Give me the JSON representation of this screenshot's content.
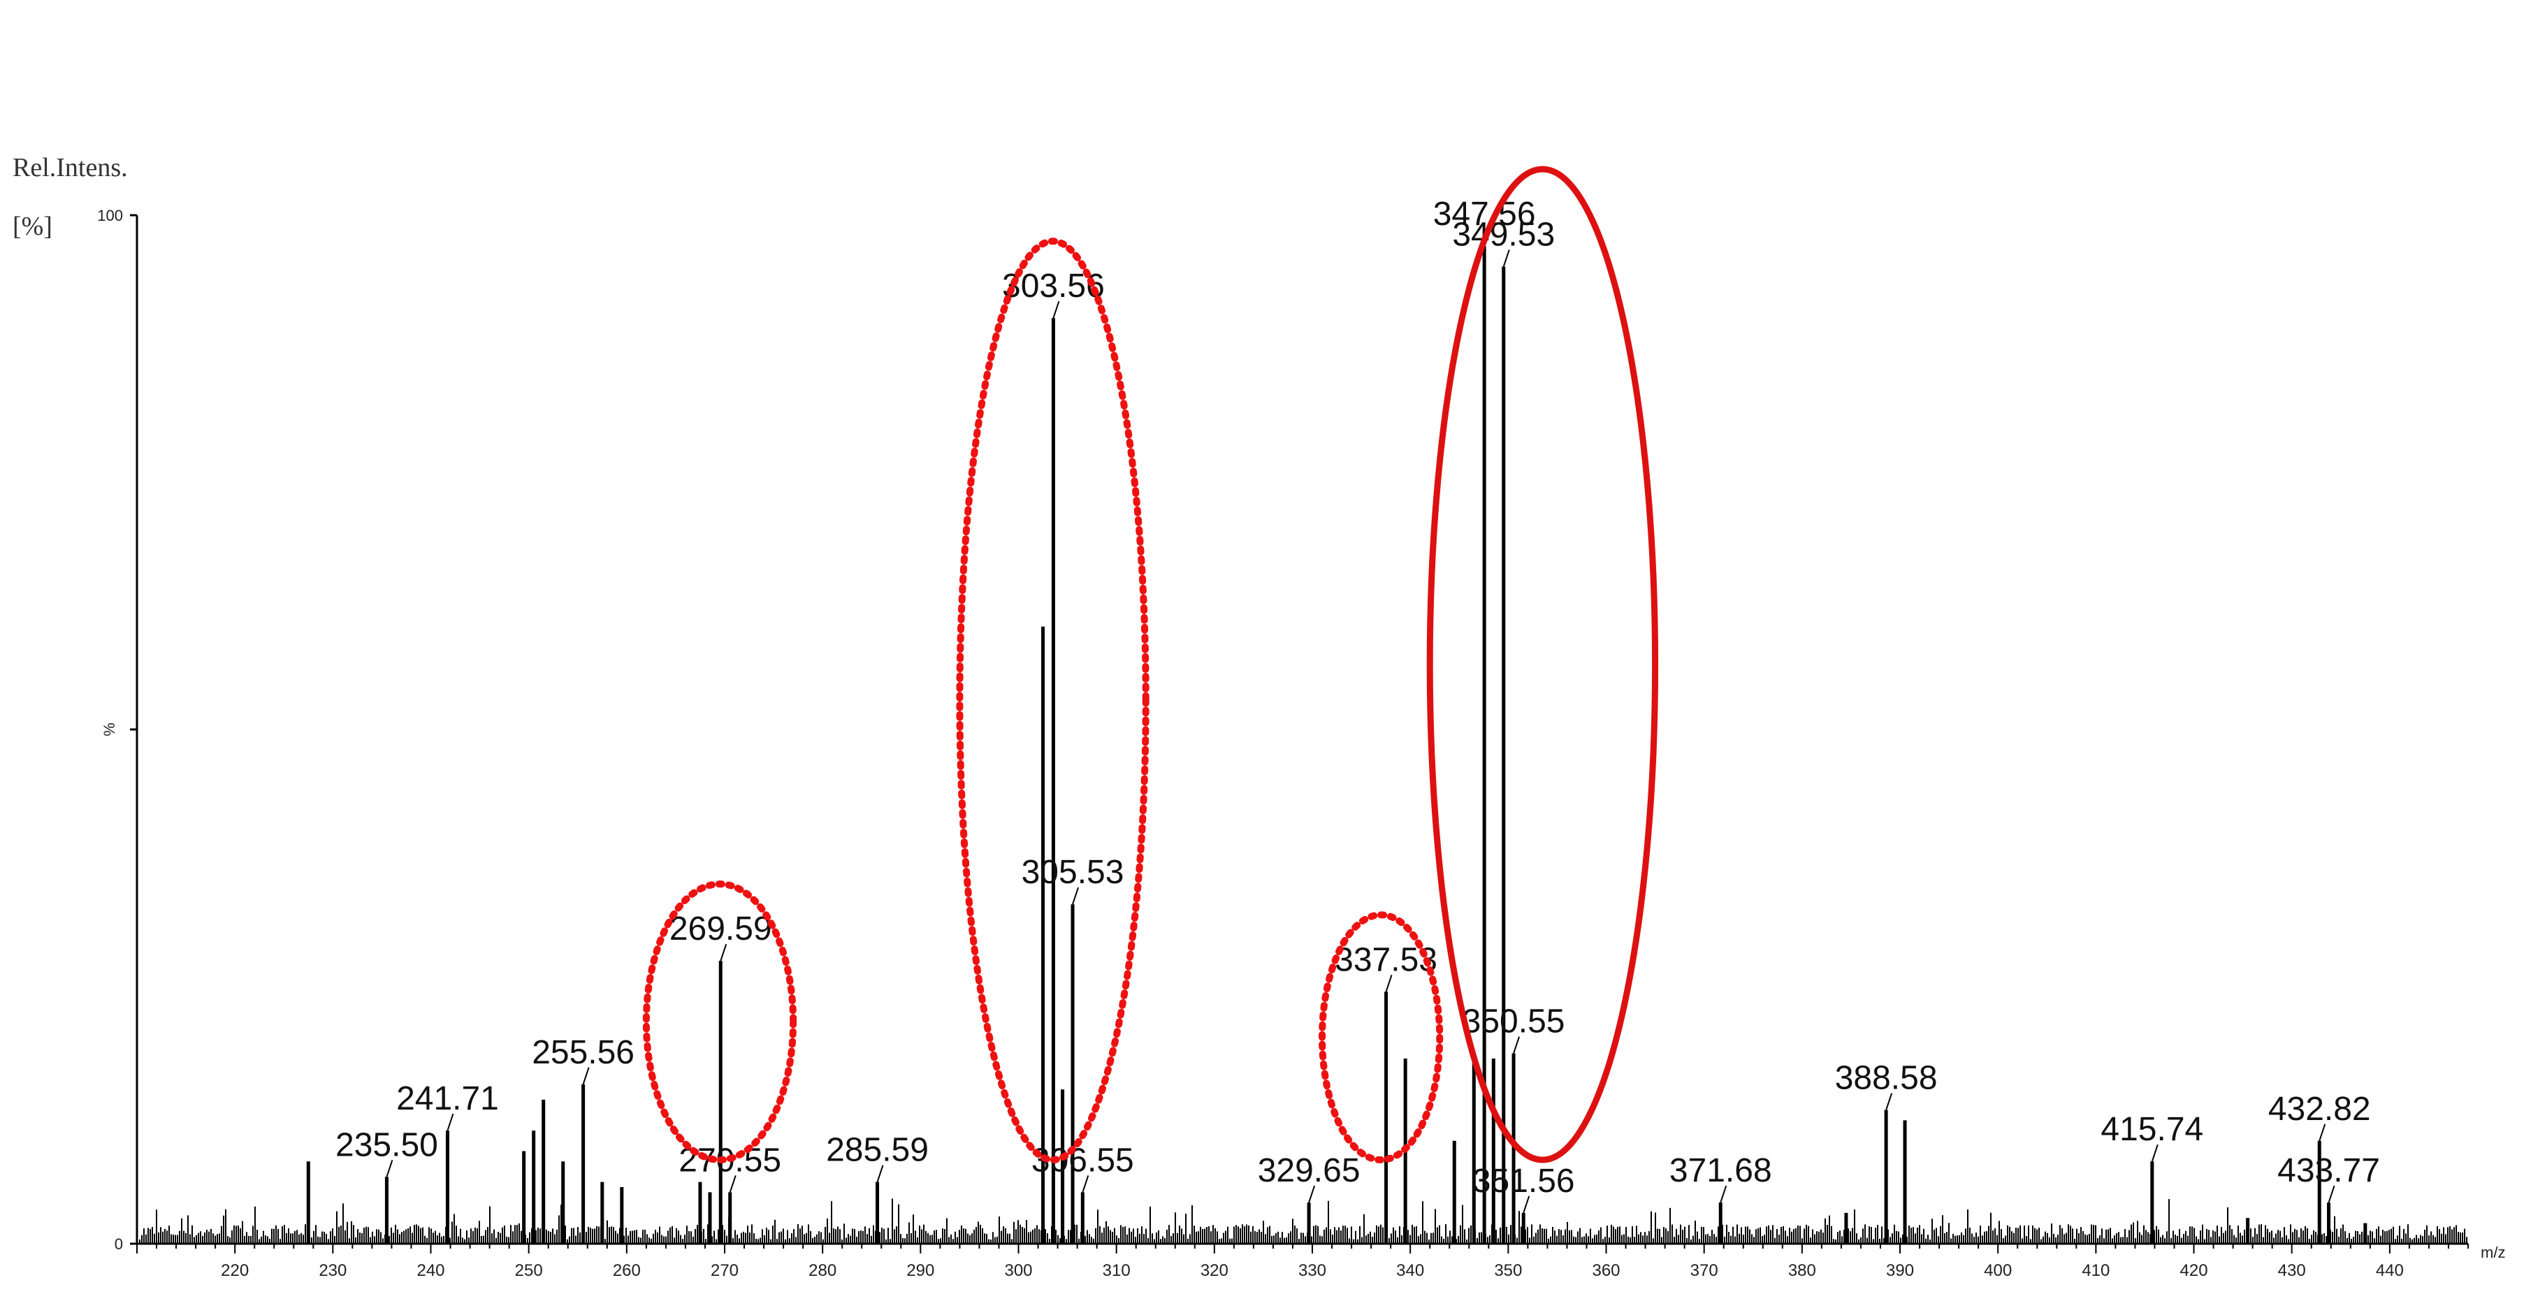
{
  "chart_data": {
    "type": "bar",
    "subtype": "mass-spectrum",
    "title": "",
    "ylabel_line1": "Rel.Intens.",
    "ylabel_line2": "[%]",
    "xlabel": "m/z",
    "ymid_label": "%",
    "xlim": [
      210,
      448
    ],
    "ylim": [
      0,
      100
    ],
    "y_ticks": [
      0,
      100
    ],
    "x_ticks": [
      220,
      230,
      240,
      250,
      260,
      270,
      280,
      290,
      300,
      310,
      320,
      330,
      340,
      350,
      360,
      370,
      380,
      390,
      400,
      410,
      420,
      430,
      440
    ],
    "grid": false,
    "peaks": [
      {
        "mz": 227.5,
        "intensity": 8.0
      },
      {
        "mz": 235.5,
        "intensity": 6.5
      },
      {
        "mz": 241.71,
        "intensity": 11.0
      },
      {
        "mz": 249.5,
        "intensity": 9.0
      },
      {
        "mz": 250.5,
        "intensity": 11.0
      },
      {
        "mz": 251.5,
        "intensity": 14.0
      },
      {
        "mz": 253.5,
        "intensity": 8.0
      },
      {
        "mz": 255.56,
        "intensity": 15.5
      },
      {
        "mz": 257.5,
        "intensity": 6.0
      },
      {
        "mz": 259.5,
        "intensity": 5.5
      },
      {
        "mz": 267.5,
        "intensity": 6.0
      },
      {
        "mz": 268.5,
        "intensity": 5.0
      },
      {
        "mz": 269.59,
        "intensity": 27.5
      },
      {
        "mz": 270.55,
        "intensity": 5.0
      },
      {
        "mz": 285.59,
        "intensity": 6.0
      },
      {
        "mz": 302.5,
        "intensity": 60.0
      },
      {
        "mz": 303.56,
        "intensity": 90.0
      },
      {
        "mz": 304.5,
        "intensity": 15.0
      },
      {
        "mz": 305.53,
        "intensity": 33.0
      },
      {
        "mz": 306.55,
        "intensity": 5.0
      },
      {
        "mz": 329.65,
        "intensity": 4.0
      },
      {
        "mz": 337.53,
        "intensity": 24.5
      },
      {
        "mz": 339.5,
        "intensity": 18.0
      },
      {
        "mz": 344.5,
        "intensity": 10.0
      },
      {
        "mz": 346.5,
        "intensity": 18.0
      },
      {
        "mz": 347.56,
        "intensity": 97.0
      },
      {
        "mz": 348.5,
        "intensity": 18.0
      },
      {
        "mz": 349.53,
        "intensity": 95.0
      },
      {
        "mz": 350.55,
        "intensity": 18.5
      },
      {
        "mz": 351.56,
        "intensity": 3.0
      },
      {
        "mz": 371.68,
        "intensity": 4.0
      },
      {
        "mz": 384.5,
        "intensity": 3.0
      },
      {
        "mz": 388.58,
        "intensity": 13.0
      },
      {
        "mz": 390.5,
        "intensity": 12.0
      },
      {
        "mz": 415.74,
        "intensity": 8.0
      },
      {
        "mz": 425.5,
        "intensity": 2.5
      },
      {
        "mz": 432.82,
        "intensity": 10.0
      },
      {
        "mz": 433.77,
        "intensity": 4.0
      },
      {
        "mz": 437.5,
        "intensity": 2.0
      }
    ],
    "annotations": [
      {
        "text": "235.50",
        "mz": 235.5
      },
      {
        "text": "241.71",
        "mz": 241.71
      },
      {
        "text": "255.56",
        "mz": 255.56
      },
      {
        "text": "269.59",
        "mz": 269.59
      },
      {
        "text": "270.55",
        "mz": 270.55
      },
      {
        "text": "285.59",
        "mz": 285.59
      },
      {
        "text": "303.56",
        "mz": 303.56
      },
      {
        "text": "305.53",
        "mz": 305.53
      },
      {
        "text": "306.55",
        "mz": 306.55
      },
      {
        "text": "329.65",
        "mz": 329.65
      },
      {
        "text": "337.53",
        "mz": 337.53
      },
      {
        "text": "347.56",
        "mz": 347.56
      },
      {
        "text": "349.53",
        "mz": 349.53
      },
      {
        "text": "350.55",
        "mz": 350.55
      },
      {
        "text": "351.56",
        "mz": 351.56
      },
      {
        "text": "371.68",
        "mz": 371.68
      },
      {
        "text": "388.58",
        "mz": 388.58
      },
      {
        "text": "415.74",
        "mz": 415.74
      },
      {
        "text": "432.82",
        "mz": 432.82
      },
      {
        "text": "433.77",
        "mz": 433.77
      }
    ],
    "highlight_regions": [
      {
        "style": "dotted",
        "color": "#ee1111",
        "mz_range": [
          262,
          277
        ]
      },
      {
        "style": "dotted",
        "color": "#ee1111",
        "mz_range": [
          294,
          313
        ]
      },
      {
        "style": "dotted",
        "color": "#ee1111",
        "mz_range": [
          331,
          343
        ]
      },
      {
        "style": "solid",
        "color": "#dd1111",
        "mz_range": [
          342,
          365
        ]
      }
    ],
    "colors": {
      "spectrum": "#000000",
      "highlight": "#ee1111"
    }
  }
}
